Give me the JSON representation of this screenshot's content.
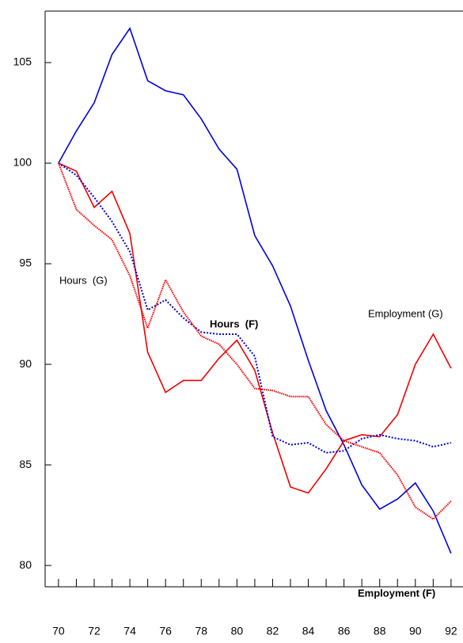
{
  "chart_data": {
    "type": "line",
    "x": [
      70,
      71,
      72,
      73,
      74,
      75,
      76,
      77,
      78,
      79,
      80,
      81,
      82,
      83,
      84,
      85,
      86,
      87,
      88,
      89,
      90,
      91,
      92
    ],
    "xlim": [
      69.25,
      92.67
    ],
    "xticks": [
      70,
      72,
      74,
      76,
      78,
      80,
      82,
      84,
      86,
      88,
      90,
      92
    ],
    "xminorticks": [
      71,
      73,
      75,
      77,
      79,
      81,
      83,
      85,
      87,
      89,
      91
    ],
    "ylim": [
      78.94,
      107.56
    ],
    "yticks": [
      80,
      85,
      90,
      95,
      100,
      105
    ],
    "series": [
      {
        "name": "Employment (F)",
        "color": "#0000dd",
        "linestyle": "solid",
        "values": [
          100,
          101.6,
          103,
          105.4,
          106.7,
          104.1,
          103.6,
          103.4,
          102.2,
          100.7,
          99.7,
          96.4,
          94.9,
          92.9,
          90.2,
          87.7,
          86,
          84,
          82.8,
          83.3,
          84.1,
          82.7,
          80.6
        ]
      },
      {
        "name": "Employment (G)",
        "color": "#ee0000",
        "linestyle": "solid",
        "values": [
          100,
          99.6,
          97.8,
          98.6,
          96.5,
          90.6,
          88.6,
          89.2,
          89.2,
          90.3,
          91.2,
          89.7,
          86.6,
          83.9,
          83.6,
          84.8,
          86.2,
          86.5,
          86.4,
          87.5,
          90,
          91.5,
          89.8
        ]
      },
      {
        "name": "Hours  (F)",
        "color": "#0000dd",
        "linestyle": "dotted",
        "values": [
          100,
          99.4,
          98.3,
          97.1,
          95.6,
          92.7,
          93.2,
          92.3,
          91.6,
          91.5,
          91.5,
          90.4,
          86.4,
          86,
          86.1,
          85.6,
          85.7,
          86.3,
          86.5,
          86.3,
          86.2,
          85.9,
          86.1
        ]
      },
      {
        "name": "Hours  (G)",
        "color": "#ee0000",
        "linestyle": "dotted",
        "values": [
          100,
          97.7,
          96.9,
          96.2,
          94.4,
          91.8,
          94.2,
          92.6,
          91.4,
          91,
          90,
          88.8,
          88.7,
          88.4,
          88.4,
          87,
          86.2,
          85.9,
          85.6,
          84.5,
          82.9,
          82.3,
          83.2
        ]
      }
    ]
  }
}
